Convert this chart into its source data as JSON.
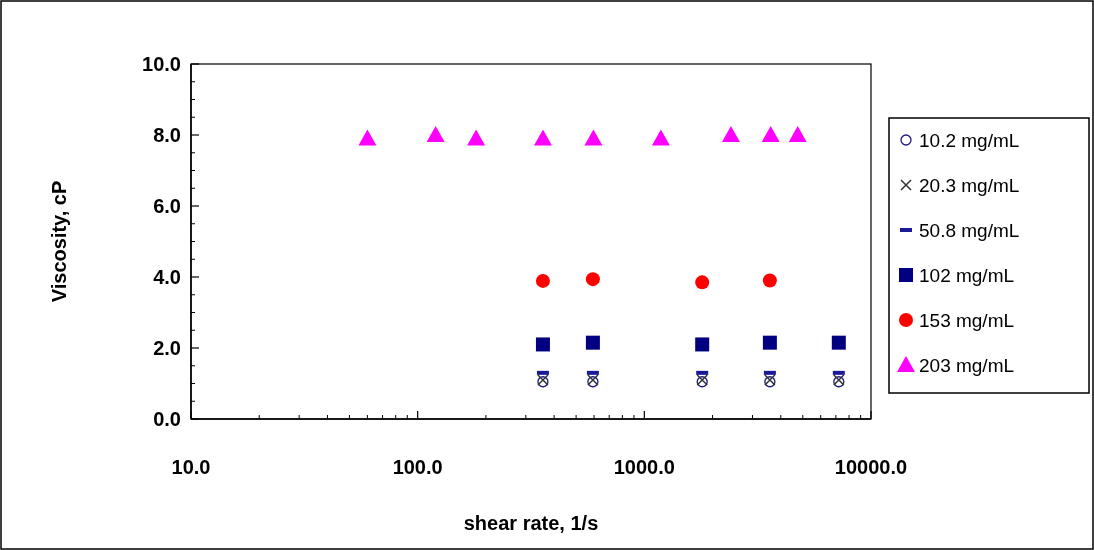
{
  "chart_data": {
    "type": "scatter",
    "xlabel": "shear rate, 1/s",
    "ylabel": "Viscosity, cP",
    "log": "x",
    "xlim": [
      10,
      10000
    ],
    "xticks": [
      {
        "value": 10,
        "label": "10.0"
      },
      {
        "value": 100,
        "label": "100.0"
      },
      {
        "value": 1000,
        "label": "1000.0"
      },
      {
        "value": 10000,
        "label": "10000.0"
      }
    ],
    "ylim": [
      0,
      10
    ],
    "yticks": [
      {
        "value": 0,
        "label": "0.0"
      },
      {
        "value": 2,
        "label": "2.0"
      },
      {
        "value": 4,
        "label": "4.0"
      },
      {
        "value": 6,
        "label": "6.0"
      },
      {
        "value": 8,
        "label": "8.0"
      },
      {
        "value": 10,
        "label": "10.0"
      }
    ],
    "grid": false,
    "legend": "right",
    "series": [
      {
        "name": "10.2 mg/mL",
        "color": "#1a1a80",
        "marker": "circle",
        "x": [
          357,
          593,
          1800,
          3580,
          7210
        ],
        "values": [
          1.05,
          1.05,
          1.05,
          1.05,
          1.05
        ]
      },
      {
        "name": "20.3 mg/mL",
        "color": "#333333",
        "marker": "cross",
        "x": [
          357,
          593,
          1800,
          3580,
          7210
        ],
        "values": [
          1.1,
          1.1,
          1.1,
          1.1,
          1.1
        ]
      },
      {
        "name": "50.8 mg/mL",
        "color": "#1a1a99",
        "x": [
          357,
          593,
          1800,
          3580,
          7210
        ],
        "values": [
          1.3,
          1.3,
          1.3,
          1.3,
          1.3
        ]
      },
      {
        "name": "102 mg/mL",
        "color": "#000080",
        "marker": "square",
        "x": [
          357,
          593,
          1800,
          3580,
          7210
        ],
        "values": [
          2.1,
          2.15,
          2.1,
          2.15,
          2.15
        ]
      },
      {
        "name": "153 mg/mL",
        "color": "#ff0000",
        "marker": "circle-filled",
        "x": [
          357,
          593,
          1800,
          3580
        ],
        "values": [
          3.89,
          3.94,
          3.85,
          3.9
        ]
      },
      {
        "name": "203 mg/mL",
        "color": "#ff00ff",
        "marker": "triangle",
        "x": [
          60,
          120,
          181,
          357,
          596,
          1183,
          2410,
          3610,
          4750
        ],
        "values": [
          7.9,
          8.0,
          7.9,
          7.9,
          7.9,
          7.9,
          8.0,
          8.0,
          8.0
        ]
      }
    ]
  }
}
